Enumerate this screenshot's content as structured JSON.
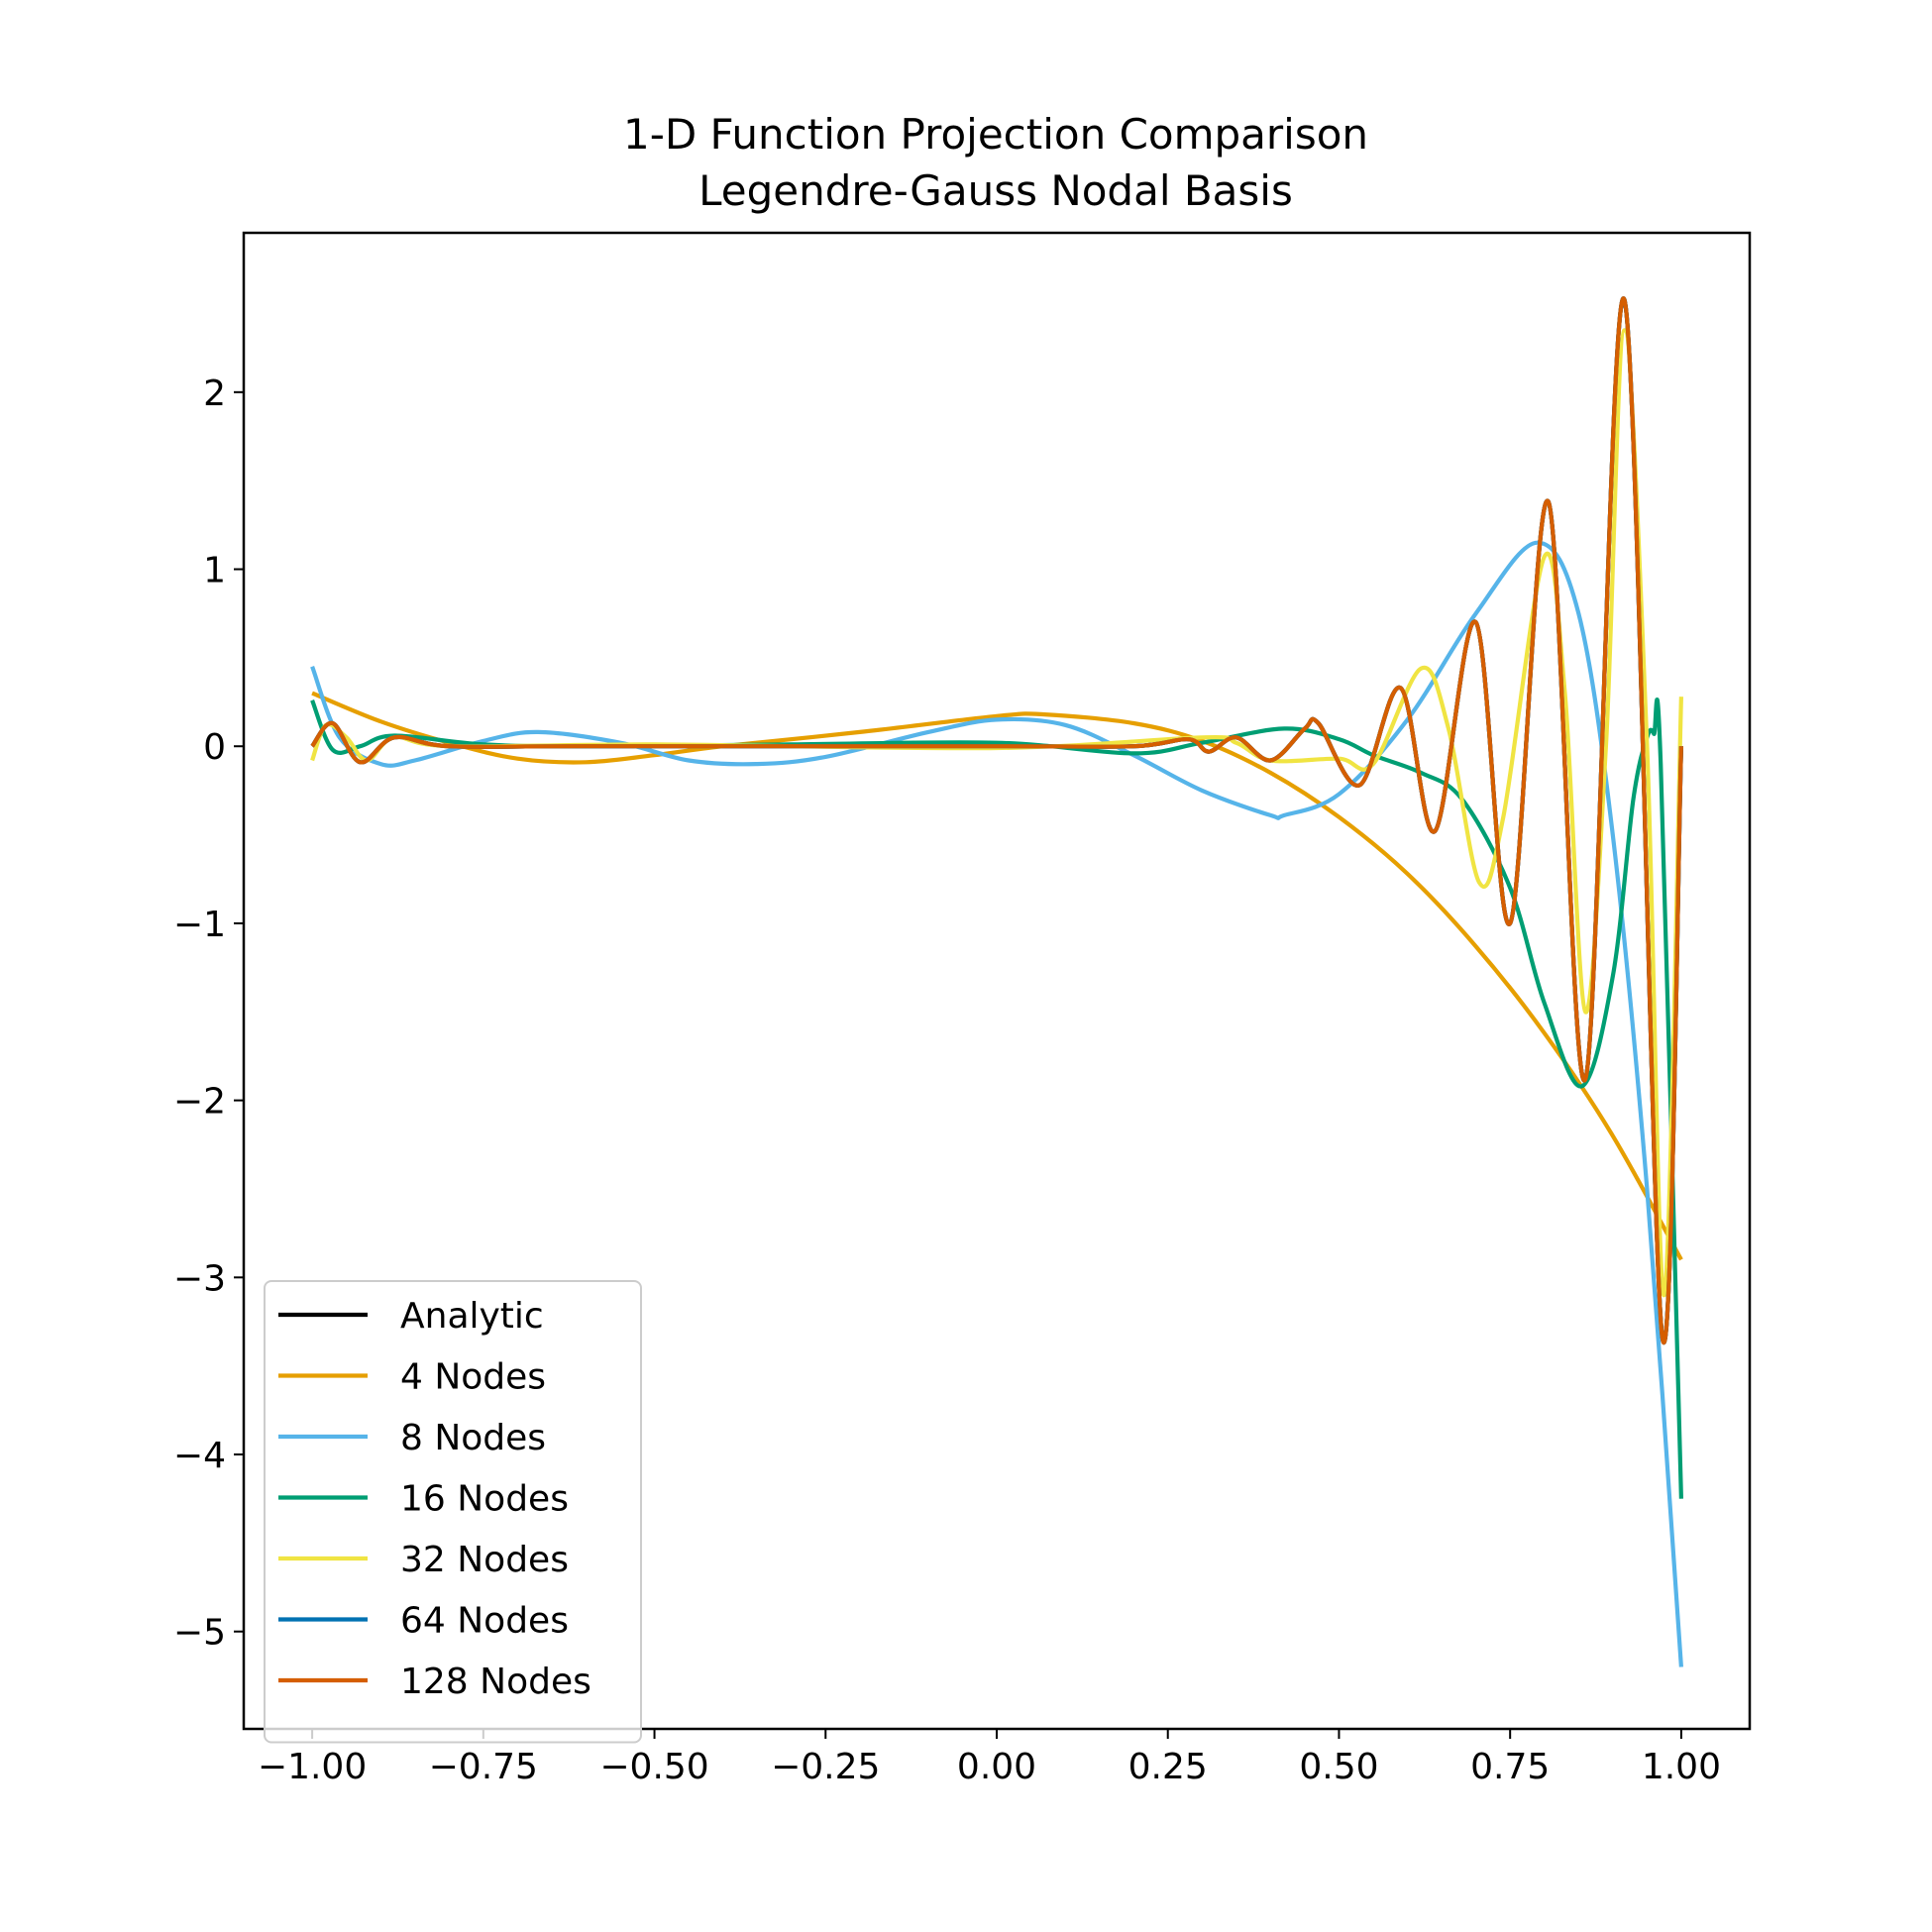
{
  "chart_data": {
    "type": "line",
    "title": "1-D Function Projection Comparison",
    "subtitle": "Legendre-Gauss Nodal Basis",
    "xlabel": "",
    "ylabel": "",
    "xlim": [
      -1.1,
      1.1
    ],
    "ylim": [
      -5.55,
      2.9
    ],
    "xticks": [
      -1.0,
      -0.75,
      -0.5,
      -0.25,
      0.0,
      0.25,
      0.5,
      0.75,
      1.0
    ],
    "xtick_labels": [
      "−1.00",
      "−0.75",
      "−0.50",
      "−0.25",
      "0.00",
      "0.25",
      "0.50",
      "0.75",
      "1.00"
    ],
    "yticks": [
      2,
      1,
      0,
      -1,
      -2,
      -3,
      -4,
      -5
    ],
    "ytick_labels": [
      "2",
      "1",
      "0",
      "−1",
      "−2",
      "−3",
      "−4",
      "−5"
    ],
    "grid": false,
    "legend": "lower-left",
    "series": [
      {
        "name": "Analytic",
        "color": "#000000",
        "points": [
          [
            -1.0,
            0.0
          ],
          [
            -0.97,
            0.13
          ],
          [
            -0.93,
            -0.09
          ],
          [
            -0.88,
            0.05
          ],
          [
            -0.8,
            0.0
          ],
          [
            -0.6,
            0.0
          ],
          [
            0.0,
            0.0
          ],
          [
            0.2,
            0.0
          ],
          [
            0.28,
            0.04
          ],
          [
            0.31,
            -0.03
          ],
          [
            0.35,
            0.05
          ],
          [
            0.4,
            -0.08
          ],
          [
            0.45,
            0.1
          ],
          [
            0.47,
            0.13
          ],
          [
            0.53,
            -0.22
          ],
          [
            0.59,
            0.33
          ],
          [
            0.64,
            -0.48
          ],
          [
            0.7,
            0.7
          ],
          [
            0.75,
            -1.0
          ],
          [
            0.806,
            1.38
          ],
          [
            0.86,
            -1.88
          ],
          [
            0.917,
            2.52
          ],
          [
            0.972,
            -3.33
          ],
          [
            1.0,
            0.0
          ]
        ]
      },
      {
        "name": "4 Nodes",
        "color": "#E69F00",
        "points": [
          [
            -1.0,
            0.3
          ],
          [
            -0.9,
            0.14
          ],
          [
            -0.8,
            0.02
          ],
          [
            -0.7,
            -0.07
          ],
          [
            -0.6,
            -0.09
          ],
          [
            -0.5,
            -0.05
          ],
          [
            -0.4,
            0.0
          ],
          [
            -0.2,
            0.08
          ],
          [
            0.0,
            0.17
          ],
          [
            0.07,
            0.18
          ],
          [
            0.2,
            0.13
          ],
          [
            0.3,
            0.03
          ],
          [
            0.4,
            -0.15
          ],
          [
            0.5,
            -0.4
          ],
          [
            0.6,
            -0.72
          ],
          [
            0.7,
            -1.13
          ],
          [
            0.8,
            -1.62
          ],
          [
            0.9,
            -2.2
          ],
          [
            1.0,
            -2.9
          ]
        ]
      },
      {
        "name": "8 Nodes",
        "color": "#56B4E9",
        "points": [
          [
            -1.0,
            0.45
          ],
          [
            -0.96,
            0.05
          ],
          [
            -0.9,
            -0.1
          ],
          [
            -0.85,
            -0.08
          ],
          [
            -0.75,
            0.03
          ],
          [
            -0.67,
            0.08
          ],
          [
            -0.55,
            0.02
          ],
          [
            -0.45,
            -0.08
          ],
          [
            -0.35,
            -0.1
          ],
          [
            -0.25,
            -0.06
          ],
          [
            -0.1,
            0.08
          ],
          [
            0.0,
            0.15
          ],
          [
            0.1,
            0.12
          ],
          [
            0.2,
            -0.05
          ],
          [
            0.3,
            -0.25
          ],
          [
            0.4,
            -0.39
          ],
          [
            0.42,
            -0.39
          ],
          [
            0.5,
            -0.27
          ],
          [
            0.6,
            0.15
          ],
          [
            0.7,
            0.75
          ],
          [
            0.79,
            1.15
          ],
          [
            0.85,
            0.75
          ],
          [
            0.9,
            -0.5
          ],
          [
            0.95,
            -2.5
          ],
          [
            1.0,
            -5.2
          ]
        ]
      },
      {
        "name": "16 Nodes",
        "color": "#009E73",
        "points": [
          [
            -1.0,
            0.26
          ],
          [
            -0.97,
            -0.02
          ],
          [
            -0.93,
            0.0
          ],
          [
            -0.88,
            0.06
          ],
          [
            -0.75,
            0.01
          ],
          [
            -0.6,
            0.0
          ],
          [
            -0.3,
            0.01
          ],
          [
            0.0,
            0.02
          ],
          [
            0.2,
            -0.04
          ],
          [
            0.3,
            0.02
          ],
          [
            0.42,
            0.1
          ],
          [
            0.5,
            0.04
          ],
          [
            0.55,
            -0.05
          ],
          [
            0.62,
            -0.15
          ],
          [
            0.68,
            -0.3
          ],
          [
            0.75,
            -0.8
          ],
          [
            0.8,
            -1.45
          ],
          [
            0.855,
            -1.92
          ],
          [
            0.9,
            -1.3
          ],
          [
            0.93,
            -0.3
          ],
          [
            0.95,
            0.05
          ],
          [
            0.96,
            0.07
          ],
          [
            0.97,
            -0.1
          ],
          [
            1.0,
            -4.25
          ]
        ]
      },
      {
        "name": "32 Nodes",
        "color": "#F0E442",
        "points": [
          [
            -1.0,
            -0.08
          ],
          [
            -0.98,
            0.12
          ],
          [
            -0.95,
            0.05
          ],
          [
            -0.92,
            -0.08
          ],
          [
            -0.88,
            0.05
          ],
          [
            -0.8,
            0.0
          ],
          [
            -0.5,
            0.01
          ],
          [
            0.0,
            -0.01
          ],
          [
            0.3,
            0.05
          ],
          [
            0.35,
            0.02
          ],
          [
            0.4,
            -0.08
          ],
          [
            0.5,
            -0.07
          ],
          [
            0.55,
            -0.1
          ],
          [
            0.62,
            0.44
          ],
          [
            0.66,
            0.1
          ],
          [
            0.705,
            -0.77
          ],
          [
            0.74,
            -0.4
          ],
          [
            0.8,
            1.07
          ],
          [
            0.83,
            0.3
          ],
          [
            0.86,
            -1.5
          ],
          [
            0.89,
            0.0
          ],
          [
            0.917,
            2.35
          ],
          [
            0.95,
            0.0
          ],
          [
            0.975,
            -3.1
          ],
          [
            1.0,
            0.28
          ]
        ]
      },
      {
        "name": "64 Nodes",
        "color": "#0072B2",
        "points": [
          [
            -1.0,
            0.0
          ],
          [
            -0.97,
            0.13
          ],
          [
            -0.93,
            -0.09
          ],
          [
            -0.88,
            0.05
          ],
          [
            -0.8,
            0.0
          ],
          [
            -0.6,
            0.0
          ],
          [
            0.0,
            0.0
          ],
          [
            0.2,
            0.0
          ],
          [
            0.28,
            0.04
          ],
          [
            0.31,
            -0.03
          ],
          [
            0.35,
            0.05
          ],
          [
            0.4,
            -0.08
          ],
          [
            0.45,
            0.1
          ],
          [
            0.47,
            0.13
          ],
          [
            0.53,
            -0.22
          ],
          [
            0.59,
            0.33
          ],
          [
            0.64,
            -0.48
          ],
          [
            0.7,
            0.7
          ],
          [
            0.75,
            -1.0
          ],
          [
            0.806,
            1.38
          ],
          [
            0.86,
            -1.88
          ],
          [
            0.917,
            2.52
          ],
          [
            0.972,
            -3.33
          ],
          [
            1.0,
            0.0
          ]
        ]
      },
      {
        "name": "128 Nodes",
        "color": "#D55E00",
        "points": [
          [
            -1.0,
            0.0
          ],
          [
            -0.97,
            0.13
          ],
          [
            -0.93,
            -0.09
          ],
          [
            -0.88,
            0.05
          ],
          [
            -0.8,
            0.0
          ],
          [
            -0.6,
            0.0
          ],
          [
            0.0,
            0.0
          ],
          [
            0.2,
            0.0
          ],
          [
            0.28,
            0.04
          ],
          [
            0.31,
            -0.03
          ],
          [
            0.35,
            0.05
          ],
          [
            0.4,
            -0.08
          ],
          [
            0.45,
            0.1
          ],
          [
            0.47,
            0.13
          ],
          [
            0.53,
            -0.22
          ],
          [
            0.59,
            0.33
          ],
          [
            0.64,
            -0.48
          ],
          [
            0.7,
            0.7
          ],
          [
            0.75,
            -1.0
          ],
          [
            0.806,
            1.38
          ],
          [
            0.86,
            -1.88
          ],
          [
            0.917,
            2.52
          ],
          [
            0.972,
            -3.33
          ],
          [
            1.0,
            0.0
          ]
        ]
      }
    ]
  }
}
